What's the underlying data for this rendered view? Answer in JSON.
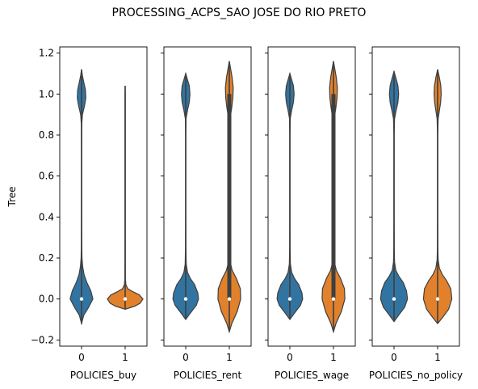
{
  "chart_data": {
    "type": "violin",
    "title": "PROCESSING_ACPS_SAO JOSE DO RIO PRETO",
    "ylabel": "Tree",
    "ylim": [
      -0.23,
      1.23
    ],
    "yticks": [
      -0.2,
      0.0,
      0.2,
      0.4,
      0.6,
      0.8,
      1.0,
      1.2
    ],
    "ytick_labels": [
      "−0.2",
      "0.0",
      "0.2",
      "0.4",
      "0.6",
      "0.8",
      "1.0",
      "1.2"
    ],
    "sharey": true,
    "colors": {
      "0": "#3274a1",
      "1": "#e1812c",
      "inner": "#3f3f3f"
    },
    "panels": [
      {
        "xlabel": "POLICIES_buy",
        "categories": [
          "0",
          "1"
        ],
        "violins": [
          {
            "category": "0",
            "range": [
              -0.12,
              1.12
            ],
            "median": 0.0,
            "q1": 0.0,
            "q3": 0.0,
            "profile": [
              [
                -0.12,
                0.0
              ],
              [
                -0.08,
                0.12
              ],
              [
                -0.04,
                0.4
              ],
              [
                0.0,
                0.64
              ],
              [
                0.04,
                0.52
              ],
              [
                0.08,
                0.3
              ],
              [
                0.12,
                0.14
              ],
              [
                0.16,
                0.06
              ],
              [
                0.2,
                0.025
              ],
              [
                0.26,
                0.012
              ],
              [
                0.35,
                0.008
              ],
              [
                0.5,
                0.006
              ],
              [
                0.7,
                0.006
              ],
              [
                0.85,
                0.01
              ],
              [
                0.9,
                0.05
              ],
              [
                0.94,
                0.16
              ],
              [
                0.98,
                0.24
              ],
              [
                1.02,
                0.22
              ],
              [
                1.06,
                0.12
              ],
              [
                1.09,
                0.05
              ],
              [
                1.12,
                0.0
              ]
            ]
          },
          {
            "category": "1",
            "range": [
              -0.05,
              1.04
            ],
            "median": 0.0,
            "q1": 0.0,
            "q3": 0.0,
            "profile": [
              [
                -0.05,
                0.0
              ],
              [
                -0.035,
                0.55
              ],
              [
                -0.02,
                0.85
              ],
              [
                0.0,
                1.0
              ],
              [
                0.02,
                0.8
              ],
              [
                0.035,
                0.45
              ],
              [
                0.05,
                0.15
              ],
              [
                0.07,
                0.04
              ],
              [
                0.1,
                0.012
              ],
              [
                0.3,
                0.008
              ],
              [
                0.6,
                0.008
              ],
              [
                0.9,
                0.008
              ],
              [
                1.0,
                0.008
              ],
              [
                1.04,
                0.0
              ]
            ]
          }
        ]
      },
      {
        "xlabel": "POLICIES_rent",
        "categories": [
          "0",
          "1"
        ],
        "violins": [
          {
            "category": "0",
            "range": [
              -0.1,
              1.1
            ],
            "median": 0.0,
            "q1": 0.0,
            "q3": 0.0,
            "profile": [
              [
                -0.1,
                0.0
              ],
              [
                -0.07,
                0.25
              ],
              [
                -0.03,
                0.6
              ],
              [
                0.0,
                0.72
              ],
              [
                0.03,
                0.68
              ],
              [
                0.07,
                0.5
              ],
              [
                0.1,
                0.26
              ],
              [
                0.13,
                0.1
              ],
              [
                0.17,
                0.03
              ],
              [
                0.25,
                0.012
              ],
              [
                0.4,
                0.006
              ],
              [
                0.6,
                0.006
              ],
              [
                0.8,
                0.007
              ],
              [
                0.88,
                0.02
              ],
              [
                0.92,
                0.1
              ],
              [
                0.96,
                0.2
              ],
              [
                1.0,
                0.24
              ],
              [
                1.04,
                0.2
              ],
              [
                1.07,
                0.1
              ],
              [
                1.1,
                0.0
              ]
            ]
          },
          {
            "category": "1",
            "range": [
              -0.16,
              1.16
            ],
            "median": 0.0,
            "q1": 0.0,
            "q3": 1.0,
            "profile": [
              [
                -0.16,
                0.0
              ],
              [
                -0.12,
                0.14
              ],
              [
                -0.06,
                0.45
              ],
              [
                0.0,
                0.64
              ],
              [
                0.05,
                0.62
              ],
              [
                0.1,
                0.4
              ],
              [
                0.14,
                0.16
              ],
              [
                0.18,
                0.05
              ],
              [
                0.25,
                0.02
              ],
              [
                0.4,
                0.01
              ],
              [
                0.6,
                0.01
              ],
              [
                0.8,
                0.012
              ],
              [
                0.88,
                0.04
              ],
              [
                0.93,
                0.13
              ],
              [
                0.98,
                0.2
              ],
              [
                1.03,
                0.22
              ],
              [
                1.08,
                0.16
              ],
              [
                1.12,
                0.08
              ],
              [
                1.16,
                0.0
              ]
            ]
          }
        ]
      },
      {
        "xlabel": "POLICIES_wage",
        "categories": [
          "0",
          "1"
        ],
        "violins": [
          {
            "category": "0",
            "range": [
              -0.1,
              1.1
            ],
            "median": 0.0,
            "q1": 0.0,
            "q3": 0.0,
            "profile": [
              [
                -0.1,
                0.0
              ],
              [
                -0.07,
                0.25
              ],
              [
                -0.03,
                0.6
              ],
              [
                0.0,
                0.72
              ],
              [
                0.03,
                0.68
              ],
              [
                0.07,
                0.5
              ],
              [
                0.1,
                0.26
              ],
              [
                0.13,
                0.1
              ],
              [
                0.17,
                0.03
              ],
              [
                0.25,
                0.012
              ],
              [
                0.4,
                0.006
              ],
              [
                0.6,
                0.006
              ],
              [
                0.8,
                0.007
              ],
              [
                0.88,
                0.02
              ],
              [
                0.92,
                0.1
              ],
              [
                0.96,
                0.2
              ],
              [
                1.0,
                0.24
              ],
              [
                1.04,
                0.2
              ],
              [
                1.07,
                0.1
              ],
              [
                1.1,
                0.0
              ]
            ]
          },
          {
            "category": "1",
            "range": [
              -0.16,
              1.16
            ],
            "median": 0.0,
            "q1": 0.0,
            "q3": 1.0,
            "profile": [
              [
                -0.16,
                0.0
              ],
              [
                -0.12,
                0.14
              ],
              [
                -0.06,
                0.45
              ],
              [
                0.0,
                0.64
              ],
              [
                0.05,
                0.62
              ],
              [
                0.1,
                0.4
              ],
              [
                0.14,
                0.16
              ],
              [
                0.18,
                0.05
              ],
              [
                0.25,
                0.02
              ],
              [
                0.4,
                0.01
              ],
              [
                0.6,
                0.01
              ],
              [
                0.8,
                0.012
              ],
              [
                0.88,
                0.04
              ],
              [
                0.93,
                0.13
              ],
              [
                0.98,
                0.2
              ],
              [
                1.03,
                0.22
              ],
              [
                1.08,
                0.16
              ],
              [
                1.12,
                0.08
              ],
              [
                1.16,
                0.0
              ]
            ]
          }
        ]
      },
      {
        "xlabel": "POLICIES_no_policy",
        "categories": [
          "0",
          "1"
        ],
        "violins": [
          {
            "category": "0",
            "range": [
              -0.11,
              1.11
            ],
            "median": 0.0,
            "q1": 0.0,
            "q3": 0.0,
            "profile": [
              [
                -0.11,
                0.0
              ],
              [
                -0.08,
                0.25
              ],
              [
                -0.04,
                0.6
              ],
              [
                0.0,
                0.76
              ],
              [
                0.04,
                0.7
              ],
              [
                0.08,
                0.52
              ],
              [
                0.11,
                0.28
              ],
              [
                0.14,
                0.1
              ],
              [
                0.18,
                0.03
              ],
              [
                0.25,
                0.012
              ],
              [
                0.4,
                0.006
              ],
              [
                0.6,
                0.006
              ],
              [
                0.8,
                0.007
              ],
              [
                0.88,
                0.03
              ],
              [
                0.92,
                0.12
              ],
              [
                0.96,
                0.22
              ],
              [
                1.0,
                0.26
              ],
              [
                1.04,
                0.22
              ],
              [
                1.08,
                0.1
              ],
              [
                1.11,
                0.0
              ]
            ]
          },
          {
            "category": "1",
            "range": [
              -0.12,
              1.12
            ],
            "median": 0.0,
            "q1": 0.0,
            "q3": 0.0,
            "profile": [
              [
                -0.12,
                0.0
              ],
              [
                -0.09,
                0.28
              ],
              [
                -0.05,
                0.62
              ],
              [
                0.0,
                0.8
              ],
              [
                0.05,
                0.74
              ],
              [
                0.09,
                0.5
              ],
              [
                0.12,
                0.26
              ],
              [
                0.15,
                0.1
              ],
              [
                0.19,
                0.03
              ],
              [
                0.25,
                0.012
              ],
              [
                0.4,
                0.006
              ],
              [
                0.6,
                0.006
              ],
              [
                0.8,
                0.007
              ],
              [
                0.88,
                0.03
              ],
              [
                0.92,
                0.1
              ],
              [
                0.96,
                0.17
              ],
              [
                1.0,
                0.2
              ],
              [
                1.04,
                0.18
              ],
              [
                1.08,
                0.1
              ],
              [
                1.12,
                0.0
              ]
            ]
          }
        ]
      }
    ]
  }
}
